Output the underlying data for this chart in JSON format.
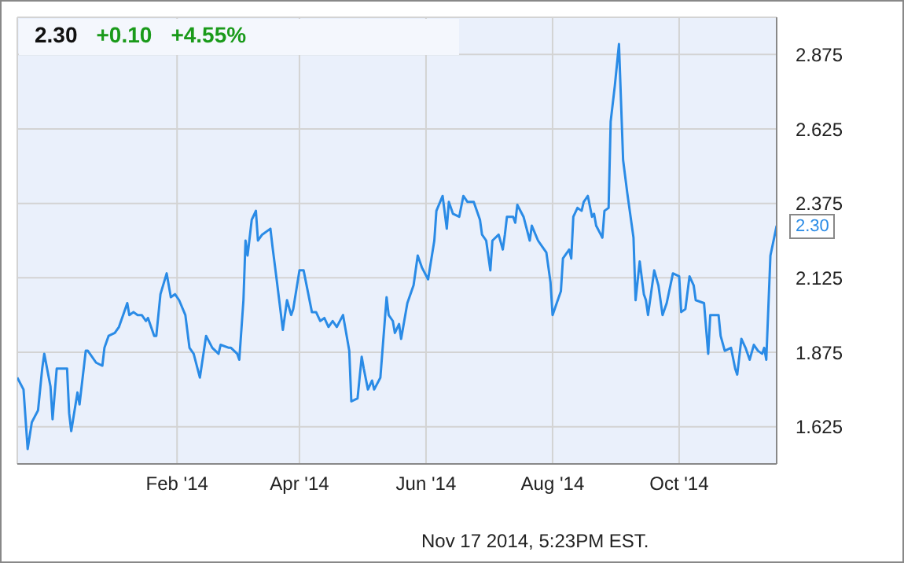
{
  "chart_data": {
    "type": "line",
    "title": "2.30",
    "annotations": [
      "+0.10",
      "+4.55%",
      "Nov 17 2014, 5:23PM EST.",
      "2.30"
    ],
    "x": [
      "2013-11-16",
      "2013-11-19",
      "2013-11-21",
      "2013-11-23",
      "2013-11-26",
      "2013-11-28",
      "2013-11-29",
      "2013-12-02",
      "2013-12-03",
      "2013-12-05",
      "2013-12-08",
      "2013-12-10",
      "2013-12-11",
      "2013-12-12",
      "2013-12-15",
      "2013-12-16",
      "2013-12-19",
      "2013-12-20",
      "2013-12-24",
      "2013-12-27",
      "2013-12-28",
      "2013-12-30",
      "2014-01-02",
      "2014-01-04",
      "2014-01-06",
      "2014-01-08",
      "2014-01-09",
      "2014-01-11",
      "2014-01-13",
      "2014-01-15",
      "2014-01-17",
      "2014-01-18",
      "2014-01-21",
      "2014-01-22",
      "2014-01-24",
      "2014-01-27",
      "2014-01-29",
      "2014-01-31",
      "2014-02-02",
      "2014-02-05",
      "2014-02-07",
      "2014-02-09",
      "2014-02-12",
      "2014-02-15",
      "2014-02-18",
      "2014-02-21",
      "2014-02-22",
      "2014-02-26",
      "2014-02-27",
      "2014-03-02",
      "2014-03-03",
      "2014-03-05",
      "2014-03-06",
      "2014-03-07",
      "2014-03-09",
      "2014-03-11",
      "2014-03-12",
      "2014-03-14",
      "2014-03-18",
      "2014-03-19",
      "2014-03-21",
      "2014-03-24",
      "2014-03-26",
      "2014-03-28",
      "2014-03-29",
      "2014-04-01",
      "2014-04-03",
      "2014-04-07",
      "2014-04-09",
      "2014-04-11",
      "2014-04-13",
      "2014-04-15",
      "2014-04-17",
      "2014-04-19",
      "2014-04-22",
      "2014-04-23",
      "2014-04-25",
      "2014-04-26",
      "2014-04-29",
      "2014-05-01",
      "2014-05-02",
      "2014-05-04",
      "2014-05-06",
      "2014-05-07",
      "2014-05-10",
      "2014-05-13",
      "2014-05-14",
      "2014-05-16",
      "2014-05-17",
      "2014-05-19",
      "2014-05-20",
      "2014-05-23",
      "2014-05-26",
      "2014-05-28",
      "2014-05-30",
      "2014-06-02",
      "2014-06-05",
      "2014-06-06",
      "2014-06-09",
      "2014-06-11",
      "2014-06-12",
      "2014-06-14",
      "2014-06-17",
      "2014-06-19",
      "2014-06-21",
      "2014-06-24",
      "2014-06-27",
      "2014-06-28",
      "2014-06-30",
      "2014-07-02",
      "2014-07-03",
      "2014-07-06",
      "2014-07-08",
      "2014-07-09",
      "2014-07-10",
      "2014-07-13",
      "2014-07-14",
      "2014-07-15",
      "2014-07-18",
      "2014-07-21",
      "2014-07-22",
      "2014-07-25",
      "2014-07-27",
      "2014-07-29",
      "2014-07-31",
      "2014-08-01",
      "2014-08-03",
      "2014-08-05",
      "2014-08-06",
      "2014-08-09",
      "2014-08-10",
      "2014-08-11",
      "2014-08-13",
      "2014-08-15",
      "2014-08-16",
      "2014-08-18",
      "2014-08-20",
      "2014-08-21",
      "2014-08-22",
      "2014-08-25",
      "2014-08-26",
      "2014-08-28",
      "2014-08-29",
      "2014-08-31",
      "2014-09-02",
      "2014-09-04",
      "2014-09-06",
      "2014-09-09",
      "2014-09-10",
      "2014-09-12",
      "2014-09-14",
      "2014-09-15",
      "2014-09-16",
      "2014-09-19",
      "2014-09-21",
      "2014-09-23",
      "2014-09-25",
      "2014-09-28",
      "2014-10-01",
      "2014-10-02",
      "2014-10-04",
      "2014-10-06",
      "2014-10-08",
      "2014-10-09",
      "2014-10-13",
      "2014-10-15",
      "2014-10-16",
      "2014-10-20",
      "2014-10-21",
      "2014-10-23",
      "2014-10-26",
      "2014-10-28",
      "2014-10-29",
      "2014-10-31",
      "2014-11-02",
      "2014-11-04",
      "2014-11-06",
      "2014-11-08",
      "2014-11-10",
      "2014-11-11",
      "2014-11-12",
      "2014-11-14",
      "2014-11-17"
    ],
    "series": [
      {
        "color": "#2a8be6",
        "values": [
          1.79,
          1.75,
          1.55,
          1.64,
          1.68,
          1.82,
          1.87,
          1.76,
          1.65,
          1.82,
          1.82,
          1.82,
          1.67,
          1.61,
          1.74,
          1.7,
          1.88,
          1.88,
          1.84,
          1.83,
          1.89,
          1.93,
          1.94,
          1.96,
          2.0,
          2.04,
          2.0,
          2.01,
          2.0,
          2.0,
          1.98,
          1.99,
          1.93,
          1.93,
          2.07,
          2.14,
          2.06,
          2.07,
          2.05,
          2.0,
          1.89,
          1.87,
          1.79,
          1.93,
          1.89,
          1.87,
          1.9,
          1.89,
          1.89,
          1.87,
          1.85,
          2.05,
          2.25,
          2.2,
          2.32,
          2.35,
          2.25,
          2.27,
          2.29,
          2.23,
          2.12,
          1.95,
          2.05,
          2.0,
          2.02,
          2.15,
          2.15,
          2.01,
          2.01,
          1.98,
          1.99,
          1.96,
          1.98,
          1.96,
          2.0,
          1.96,
          1.88,
          1.71,
          1.72,
          1.86,
          1.82,
          1.75,
          1.78,
          1.75,
          1.79,
          2.06,
          2.0,
          1.98,
          1.94,
          1.97,
          1.92,
          2.04,
          2.1,
          2.2,
          2.16,
          2.12,
          2.25,
          2.35,
          2.4,
          2.29,
          2.38,
          2.34,
          2.33,
          2.4,
          2.38,
          2.38,
          2.32,
          2.27,
          2.25,
          2.15,
          2.25,
          2.27,
          2.22,
          2.27,
          2.33,
          2.33,
          2.31,
          2.37,
          2.33,
          2.25,
          2.3,
          2.25,
          2.23,
          2.21,
          2.11,
          2.0,
          2.04,
          2.08,
          2.19,
          2.22,
          2.19,
          2.33,
          2.36,
          2.35,
          2.38,
          2.4,
          2.33,
          2.34,
          2.3,
          2.26,
          2.35,
          2.36,
          2.65,
          2.77,
          2.91,
          2.52,
          2.41,
          2.26,
          2.05,
          2.18,
          2.07,
          2.05,
          2.0,
          2.15,
          2.1,
          2.0,
          2.04,
          2.14,
          2.13,
          2.01,
          2.02,
          2.13,
          2.1,
          2.05,
          2.04,
          1.87,
          2.0,
          2.0,
          1.93,
          1.88,
          1.89,
          1.82,
          1.8,
          1.92,
          1.89,
          1.85,
          1.9,
          1.88,
          1.87,
          1.89,
          1.85,
          2.2,
          2.3
        ]
      }
    ],
    "ylim": [
      1.5,
      3.0
    ],
    "yticks": [
      1.625,
      1.875,
      2.125,
      2.375,
      2.625,
      2.875
    ],
    "xlim": [
      "2013-11-16",
      "2014-11-17"
    ],
    "xticks": [
      {
        "value": "2014-02-01",
        "label": "Feb '14"
      },
      {
        "value": "2014-04-01",
        "label": "Apr '14"
      },
      {
        "value": "2014-06-01",
        "label": "Jun '14"
      },
      {
        "value": "2014-08-01",
        "label": "Aug '14"
      },
      {
        "value": "2014-10-01",
        "label": "Oct '14"
      }
    ],
    "grid": true,
    "legend": false,
    "marker": "none",
    "line_style": "solid"
  }
}
